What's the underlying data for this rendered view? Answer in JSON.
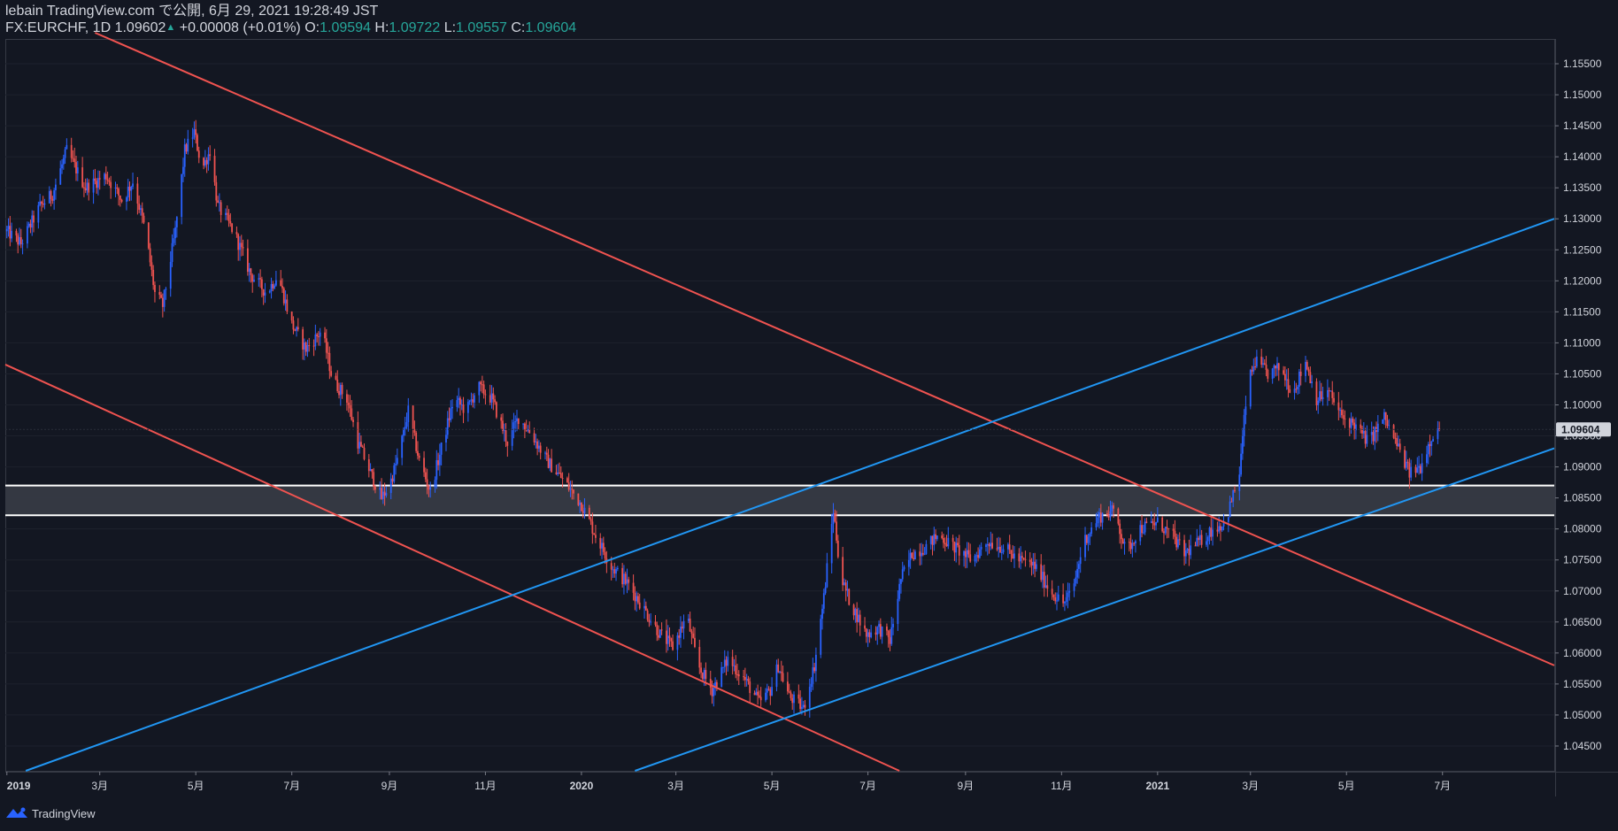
{
  "header": {
    "published_line": "lebain TradingView.com で公開, 6月 29, 2021 19:28:49 JST",
    "symbol": "FX:EURCHF, 1D 1.09602",
    "change_arrow": "▲",
    "change": "+0.00008 (+0.01%)",
    "o_label": "O:",
    "o_value": "1.09594",
    "h_label": "H:",
    "h_value": "1.09722",
    "l_label": "L:",
    "l_value": "1.09557",
    "c_label": "C:",
    "c_value": "1.09604"
  },
  "footer": {
    "brand": "TradingView",
    "logo_icon": "tradingview-logo-icon"
  },
  "colors": {
    "background": "#131722",
    "up": "#2962ff",
    "down": "#ef5350",
    "red_trend": "#ef5350",
    "blue_trend": "#2196f3",
    "zone": "#363a45",
    "zone_border": "#ffffff",
    "text": "#d1d4dc",
    "price_label_bg": "#d1d4dc"
  },
  "chart_data": {
    "type": "candlestick",
    "symbol": "FX:EURCHF",
    "timeframe": "1D",
    "ylim": [
      1.041,
      1.159
    ],
    "xlim": [
      "2018-12-31",
      "2021-09-10"
    ],
    "y_ticks": [
      "1.04500",
      "1.05000",
      "1.05500",
      "1.06000",
      "1.06500",
      "1.07000",
      "1.07500",
      "1.08000",
      "1.08500",
      "1.09000",
      "1.09500",
      "1.10000",
      "1.10500",
      "1.11000",
      "1.11500",
      "1.12000",
      "1.12500",
      "1.13000",
      "1.13500",
      "1.14000",
      "1.14500",
      "1.15000",
      "1.15500"
    ],
    "x_ticks": [
      {
        "label": "2019",
        "date": "2019-01-01",
        "bold": true
      },
      {
        "label": "3月",
        "date": "2019-03-01"
      },
      {
        "label": "5月",
        "date": "2019-05-01"
      },
      {
        "label": "7月",
        "date": "2019-07-01"
      },
      {
        "label": "9月",
        "date": "2019-09-01"
      },
      {
        "label": "11月",
        "date": "2019-11-01"
      },
      {
        "label": "2020",
        "date": "2020-01-01",
        "bold": true
      },
      {
        "label": "3月",
        "date": "2020-03-01"
      },
      {
        "label": "5月",
        "date": "2020-05-01"
      },
      {
        "label": "7月",
        "date": "2020-07-01"
      },
      {
        "label": "9月",
        "date": "2020-09-01"
      },
      {
        "label": "11月",
        "date": "2020-11-01"
      },
      {
        "label": "2021",
        "date": "2021-01-01",
        "bold": true
      },
      {
        "label": "3月",
        "date": "2021-03-01"
      },
      {
        "label": "5月",
        "date": "2021-05-01"
      },
      {
        "label": "7月",
        "date": "2021-07-01"
      }
    ],
    "last_price_label": "1.09604",
    "last_price": 1.09604,
    "close_path": [
      [
        "2019-01-01",
        1.128
      ],
      [
        "2019-01-10",
        1.126
      ],
      [
        "2019-01-22",
        1.132
      ],
      [
        "2019-01-30",
        1.134
      ],
      [
        "2019-02-08",
        1.141
      ],
      [
        "2019-02-20",
        1.135
      ],
      [
        "2019-03-05",
        1.137
      ],
      [
        "2019-03-15",
        1.133
      ],
      [
        "2019-03-22",
        1.136
      ],
      [
        "2019-03-30",
        1.128
      ],
      [
        "2019-04-05",
        1.118
      ],
      [
        "2019-04-10",
        1.116
      ],
      [
        "2019-04-18",
        1.128
      ],
      [
        "2019-04-24",
        1.141
      ],
      [
        "2019-04-30",
        1.144
      ],
      [
        "2019-05-05",
        1.138
      ],
      [
        "2019-05-10",
        1.141
      ],
      [
        "2019-05-15",
        1.132
      ],
      [
        "2019-05-25",
        1.128
      ],
      [
        "2019-06-05",
        1.121
      ],
      [
        "2019-06-15",
        1.118
      ],
      [
        "2019-06-22",
        1.121
      ],
      [
        "2019-07-01",
        1.113
      ],
      [
        "2019-07-10",
        1.109
      ],
      [
        "2019-07-20",
        1.112
      ],
      [
        "2019-07-27",
        1.104
      ],
      [
        "2019-08-05",
        1.101
      ],
      [
        "2019-08-12",
        1.094
      ],
      [
        "2019-08-20",
        1.089
      ],
      [
        "2019-08-27",
        1.085
      ],
      [
        "2019-09-01",
        1.087
      ],
      [
        "2019-09-07",
        1.092
      ],
      [
        "2019-09-13",
        1.099
      ],
      [
        "2019-09-20",
        1.091
      ],
      [
        "2019-09-27",
        1.086
      ],
      [
        "2019-10-05",
        1.094
      ],
      [
        "2019-10-12",
        1.101
      ],
      [
        "2019-10-20",
        1.099
      ],
      [
        "2019-10-27",
        1.103
      ],
      [
        "2019-11-05",
        1.101
      ],
      [
        "2019-11-15",
        1.094
      ],
      [
        "2019-11-22",
        1.098
      ],
      [
        "2019-12-01",
        1.095
      ],
      [
        "2019-12-10",
        1.091
      ],
      [
        "2019-12-20",
        1.088
      ],
      [
        "2020-01-01",
        1.084
      ],
      [
        "2020-01-10",
        1.079
      ],
      [
        "2020-01-20",
        1.074
      ],
      [
        "2020-01-31",
        1.071
      ],
      [
        "2020-02-10",
        1.067
      ],
      [
        "2020-02-20",
        1.063
      ],
      [
        "2020-02-28",
        1.061
      ],
      [
        "2020-03-08",
        1.066
      ],
      [
        "2020-03-15",
        1.058
      ],
      [
        "2020-03-24",
        1.054
      ],
      [
        "2020-04-03",
        1.059
      ],
      [
        "2020-04-13",
        1.056
      ],
      [
        "2020-04-23",
        1.052
      ],
      [
        "2020-04-30",
        1.054
      ],
      [
        "2020-05-05",
        1.058
      ],
      [
        "2020-05-12",
        1.053
      ],
      [
        "2020-05-21",
        1.051
      ],
      [
        "2020-05-28",
        1.058
      ],
      [
        "2020-06-03",
        1.069
      ],
      [
        "2020-06-09",
        1.083
      ],
      [
        "2020-06-14",
        1.072
      ],
      [
        "2020-06-20",
        1.068
      ],
      [
        "2020-06-30",
        1.063
      ],
      [
        "2020-07-08",
        1.064
      ],
      [
        "2020-07-15",
        1.062
      ],
      [
        "2020-07-22",
        1.072
      ],
      [
        "2020-07-29",
        1.076
      ],
      [
        "2020-08-06",
        1.077
      ],
      [
        "2020-08-15",
        1.079
      ],
      [
        "2020-08-25",
        1.077
      ],
      [
        "2020-09-05",
        1.075
      ],
      [
        "2020-09-15",
        1.078
      ],
      [
        "2020-09-25",
        1.077
      ],
      [
        "2020-10-05",
        1.075
      ],
      [
        "2020-10-15",
        1.074
      ],
      [
        "2020-10-25",
        1.07
      ],
      [
        "2020-11-02",
        1.068
      ],
      [
        "2020-11-08",
        1.07
      ],
      [
        "2020-11-15",
        1.078
      ],
      [
        "2020-11-25",
        1.082
      ],
      [
        "2020-12-05",
        1.083
      ],
      [
        "2020-12-12",
        1.076
      ],
      [
        "2020-12-20",
        1.08
      ],
      [
        "2021-01-01",
        1.081
      ],
      [
        "2021-01-10",
        1.079
      ],
      [
        "2021-01-18",
        1.076
      ],
      [
        "2021-01-28",
        1.078
      ],
      [
        "2021-02-05",
        1.08
      ],
      [
        "2021-02-13",
        1.081
      ],
      [
        "2021-02-22",
        1.089
      ],
      [
        "2021-02-27",
        1.103
      ],
      [
        "2021-03-04",
        1.107
      ],
      [
        "2021-03-12",
        1.105
      ],
      [
        "2021-03-20",
        1.106
      ],
      [
        "2021-03-28",
        1.102
      ],
      [
        "2021-04-05",
        1.107
      ],
      [
        "2021-04-12",
        1.101
      ],
      [
        "2021-04-20",
        1.102
      ],
      [
        "2021-04-28",
        1.098
      ],
      [
        "2021-05-05",
        1.097
      ],
      [
        "2021-05-15",
        1.094
      ],
      [
        "2021-05-25",
        1.098
      ],
      [
        "2021-06-03",
        1.093
      ],
      [
        "2021-06-10",
        1.089
      ],
      [
        "2021-06-17",
        1.09
      ],
      [
        "2021-06-24",
        1.095
      ],
      [
        "2021-06-29",
        1.09604
      ]
    ],
    "trend_lines": [
      {
        "color": "red",
        "from": [
          "2019-02-26",
          1.16
        ],
        "to": [
          "2021-09-10",
          1.058
        ]
      },
      {
        "color": "red",
        "from": [
          "2018-12-31",
          1.1065
        ],
        "to": [
          "2020-07-21",
          1.041
        ]
      },
      {
        "color": "blue",
        "from": [
          "2019-01-13",
          1.041
        ],
        "to": [
          "2021-09-10",
          1.13
        ]
      },
      {
        "color": "blue",
        "from": [
          "2020-02-04",
          1.041
        ],
        "to": [
          "2021-09-10",
          1.093
        ]
      }
    ],
    "zone": {
      "from": 1.0822,
      "to": 1.087
    }
  }
}
